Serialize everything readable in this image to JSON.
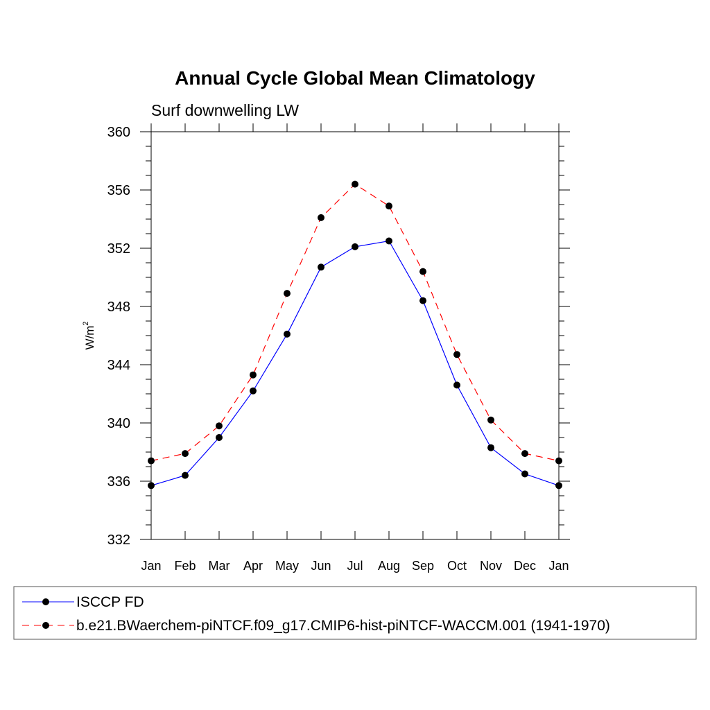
{
  "chart_data": {
    "type": "line",
    "title": "Annual Cycle Global Mean Climatology",
    "subtitle": "Surf downwelling LW",
    "ylabel": "W/m",
    "ylabel_sup": "2",
    "ylim": [
      332,
      360
    ],
    "yticks": [
      332,
      336,
      340,
      344,
      348,
      352,
      356,
      360
    ],
    "categories": [
      "Jan",
      "Feb",
      "Mar",
      "Apr",
      "May",
      "Jun",
      "Jul",
      "Aug",
      "Sep",
      "Oct",
      "Nov",
      "Dec",
      "Jan"
    ],
    "grid": false,
    "legend_placement": "bottom",
    "series": [
      {
        "name": "ISCCP FD",
        "color": "#0000ff",
        "dash": "solid",
        "values": [
          335.7,
          336.4,
          339.0,
          342.2,
          346.1,
          350.7,
          352.1,
          352.5,
          348.4,
          342.6,
          338.3,
          336.5,
          335.7
        ]
      },
      {
        "name": "b.e21.BWaerchem-piNTCF.f09_g17.CMIP6-hist-piNTCF-WACCM.001 (1941-1970)",
        "color": "#ff0000",
        "dash": "dashed",
        "values": [
          337.4,
          337.9,
          339.8,
          343.3,
          348.9,
          354.1,
          356.4,
          354.9,
          350.4,
          344.7,
          340.2,
          337.9,
          337.4
        ]
      }
    ]
  }
}
